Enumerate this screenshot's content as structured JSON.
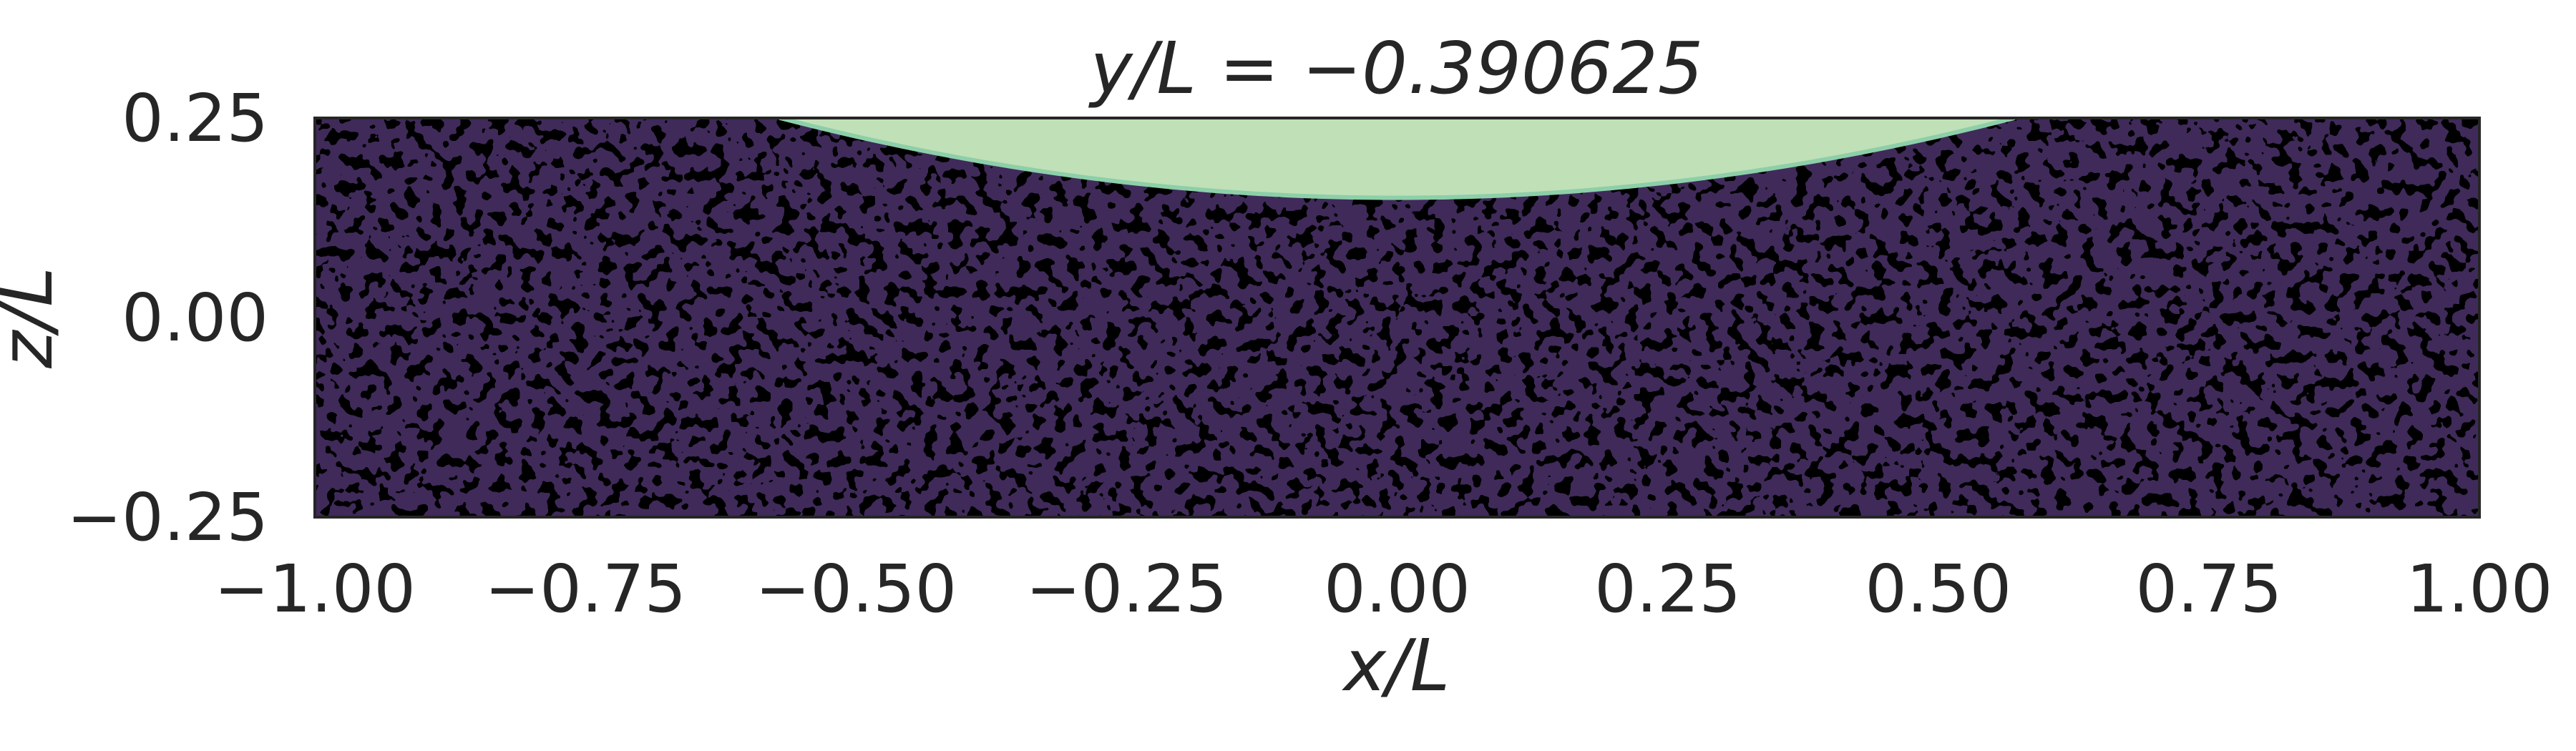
{
  "chart_data": {
    "type": "heatmap",
    "title": "y/L = −0.390625",
    "xlabel": "x/L",
    "ylabel": "z/L",
    "xlim": [
      -1.0,
      1.0
    ],
    "ylim": [
      -0.25,
      0.25
    ],
    "x_ticks": [
      "−1.00",
      "−0.75",
      "−0.50",
      "−0.25",
      "0.00",
      "0.25",
      "0.50",
      "0.75",
      "1.00"
    ],
    "x_tick_values": [
      -1.0,
      -0.75,
      -0.5,
      -0.25,
      0.0,
      0.25,
      0.5,
      0.75,
      1.0
    ],
    "y_ticks": [
      "−0.25",
      "0.00",
      "0.25"
    ],
    "y_tick_values": [
      -0.25,
      0.0,
      0.25
    ],
    "grid": false,
    "background_color": "#3f2a5a",
    "noise_color": "#000000",
    "cap_color": "#c0e0b8",
    "cap_edge_color": "#8ccfa8",
    "cap_region": {
      "description": "light green region at top of domain",
      "x_extent": [
        -0.57,
        0.57
      ],
      "z_top": 0.25,
      "z_bottom_at_center": 0.15
    }
  }
}
